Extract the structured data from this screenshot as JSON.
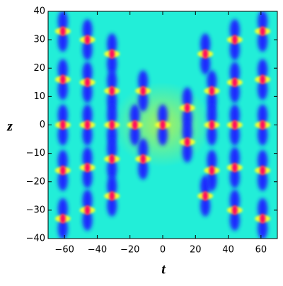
{
  "chart_data": {
    "type": "density",
    "x_label": "t",
    "y_label": "z",
    "xlim": [
      -70,
      70
    ],
    "ylim": [
      -40,
      40
    ],
    "xticks": [
      {
        "value": -60,
        "label": "−60"
      },
      {
        "value": -40,
        "label": "−40"
      },
      {
        "value": -20,
        "label": "−20"
      },
      0,
      20,
      40,
      60
    ],
    "yticks": [
      {
        "value": -40,
        "label": "−40"
      },
      {
        "value": -30,
        "label": "−30"
      },
      {
        "value": -20,
        "label": "−20"
      },
      {
        "value": -10,
        "label": "−10"
      },
      0,
      10,
      20,
      30,
      40
    ],
    "x": [
      -61,
      -61,
      -61,
      -61,
      -61,
      -46,
      -46,
      -46,
      -46,
      -46,
      -31,
      -31,
      -31,
      -31,
      -31,
      -17,
      -12,
      -12,
      0,
      15,
      15,
      26,
      26,
      30,
      30,
      30,
      44,
      44,
      44,
      44,
      44,
      61,
      61,
      61,
      61,
      61
    ],
    "values": [
      33,
      16,
      0,
      -16,
      -33,
      30,
      15,
      0,
      -15,
      -30,
      25,
      12,
      0,
      -12,
      -25,
      0,
      12,
      -12,
      0,
      6,
      -6,
      25,
      -25,
      12,
      0,
      -16,
      30,
      15,
      0,
      -15,
      -30,
      33,
      16,
      0,
      -16,
      -33
    ],
    "background": "#22eed8",
    "lobe_color": "#1a2cff",
    "halo_color": "#f2ff30",
    "core_color": "#ff1060"
  }
}
